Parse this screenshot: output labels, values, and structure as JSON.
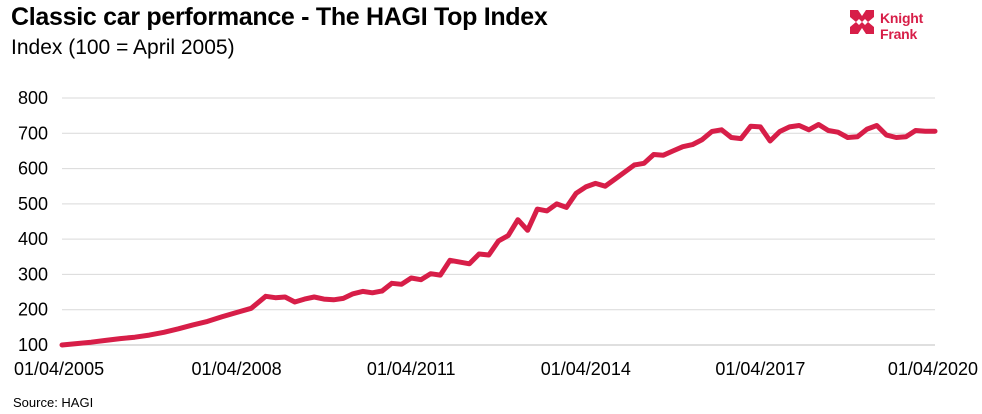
{
  "brand": {
    "logo_name": "Knight Frank",
    "logo_line1": "Knight",
    "logo_line2": "Frank",
    "color": "#d71e48"
  },
  "source": "Source: HAGI",
  "chart_data": {
    "type": "line",
    "title": "Classic car performance - The HAGI Top Index",
    "subtitle": "Index (100 = April 2005)",
    "xlabel": "",
    "ylabel": "",
    "ylim": [
      100,
      800
    ],
    "yticks": [
      100,
      200,
      300,
      400,
      500,
      600,
      700,
      800
    ],
    "xticks": [
      "01/04/2005",
      "01/04/2008",
      "01/04/2011",
      "01/04/2014",
      "01/04/2017",
      "01/04/2020"
    ],
    "xlim": [
      "2005-04",
      "2020-04"
    ],
    "grid": "horizontal",
    "line_color": "#d71e48",
    "series": [
      {
        "x": [
          "2005-04",
          "2005-07",
          "2005-10",
          "2006-01",
          "2006-04",
          "2006-07",
          "2006-10",
          "2007-01",
          "2007-04",
          "2007-07",
          "2007-10",
          "2008-01",
          "2008-04",
          "2008-07",
          "2008-10",
          "2008-12",
          "2009-02",
          "2009-04",
          "2009-06",
          "2009-08",
          "2009-10",
          "2009-12",
          "2010-02",
          "2010-04",
          "2010-06",
          "2010-08",
          "2010-10",
          "2010-12",
          "2011-02",
          "2011-04",
          "2011-06",
          "2011-08",
          "2011-10",
          "2011-12",
          "2012-02",
          "2012-04",
          "2012-06",
          "2012-08",
          "2012-10",
          "2012-12",
          "2013-02",
          "2013-04",
          "2013-06",
          "2013-08",
          "2013-10",
          "2013-12",
          "2014-02",
          "2014-04",
          "2014-06",
          "2014-08",
          "2014-10",
          "2014-12",
          "2015-02",
          "2015-04",
          "2015-06",
          "2015-08",
          "2015-10",
          "2015-12",
          "2016-02",
          "2016-04",
          "2016-06",
          "2016-08",
          "2016-10",
          "2016-12",
          "2017-02",
          "2017-04",
          "2017-06",
          "2017-08",
          "2017-10",
          "2017-12",
          "2018-02",
          "2018-04",
          "2018-06",
          "2018-08",
          "2018-10",
          "2018-12",
          "2019-02",
          "2019-04",
          "2019-06",
          "2019-08",
          "2019-10",
          "2019-12",
          "2020-02",
          "2020-04"
        ],
        "values": [
          100,
          104,
          108,
          113,
          118,
          122,
          128,
          136,
          146,
          157,
          167,
          180,
          192,
          204,
          238,
          234,
          236,
          222,
          230,
          236,
          230,
          228,
          232,
          245,
          252,
          248,
          253,
          275,
          272,
          290,
          285,
          302,
          298,
          340,
          335,
          330,
          358,
          355,
          395,
          410,
          455,
          425,
          485,
          480,
          500,
          490,
          530,
          548,
          558,
          550,
          570,
          590,
          610,
          615,
          640,
          638,
          650,
          662,
          668,
          682,
          705,
          710,
          688,
          685,
          720,
          718,
          678,
          705,
          718,
          722,
          710,
          725,
          708,
          703,
          688,
          690,
          712,
          722,
          695,
          688,
          690,
          708,
          706,
          706
        ]
      }
    ]
  }
}
